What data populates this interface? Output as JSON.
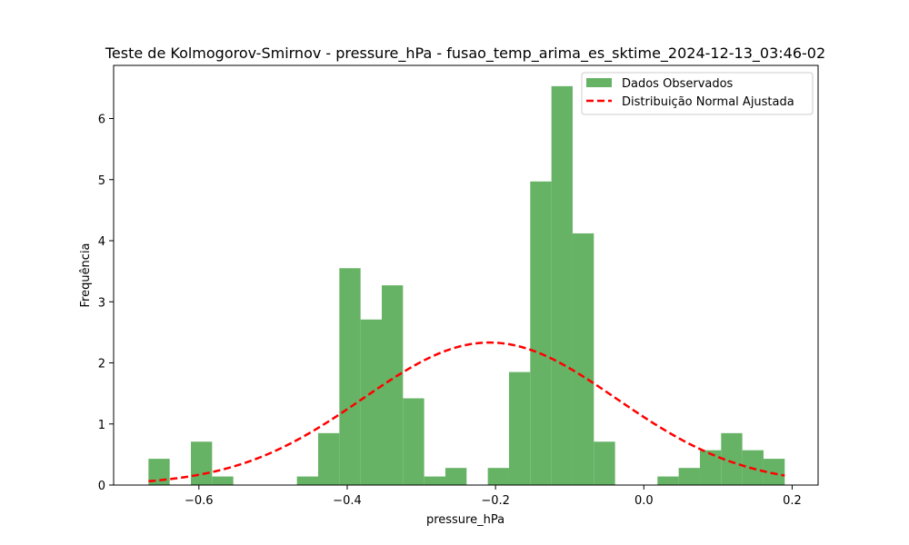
{
  "chart_data": {
    "type": "bar",
    "title": "Teste de Kolmogorov-Smirnov - pressure_hPa - fusao_temp_arima_es_sktime_2024-12-13_03:46-02",
    "xlabel": "pressure_hPa",
    "ylabel": "Frequência",
    "xlim": [
      -0.715,
      0.235
    ],
    "ylim": [
      0,
      6.87
    ],
    "xticks": [
      -0.6,
      -0.4,
      -0.2,
      0.0,
      0.2
    ],
    "xtick_labels": [
      "−0.6",
      "−0.4",
      "−0.2",
      "0.0",
      "0.2"
    ],
    "yticks": [
      0,
      1,
      2,
      3,
      4,
      5,
      6
    ],
    "ytick_labels": [
      "0",
      "1",
      "2",
      "3",
      "4",
      "5",
      "6"
    ],
    "histogram": {
      "name": "Dados Observados",
      "color": "#66b366",
      "bin_start": -0.668,
      "bin_width": 0.0286,
      "values": [
        0.43,
        0,
        0.71,
        0.14,
        0,
        0,
        0,
        0.14,
        0.85,
        3.55,
        2.71,
        3.27,
        1.42,
        0.14,
        0.28,
        0,
        0.28,
        1.85,
        4.97,
        6.53,
        4.12,
        0.71,
        0,
        0,
        0.14,
        0.28,
        0.57,
        0.85,
        0.57,
        0.43
      ]
    },
    "fit_curve": {
      "name": "Distribuição Normal Ajustada",
      "color": "#ff0000",
      "mean": -0.208,
      "std": 0.171,
      "x_range": [
        -0.668,
        0.19
      ]
    },
    "legend": {
      "position": "upper-right",
      "entries": [
        "Dados Observados",
        "Distribuição Normal Ajustada"
      ]
    },
    "grid": false
  }
}
